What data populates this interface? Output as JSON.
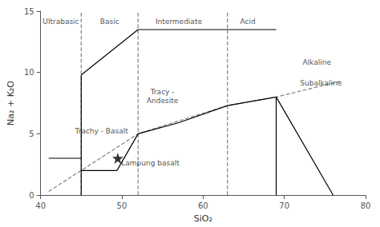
{
  "chart_data": {
    "type": "line",
    "xlabel": "SiO₂",
    "ylabel": "Na₂ + K₂O",
    "xlim": [
      40,
      80
    ],
    "ylim": [
      0,
      15
    ],
    "xticks": [
      40,
      50,
      60,
      70,
      80
    ],
    "yticks": [
      0,
      5,
      10,
      15
    ],
    "grid": false,
    "series": [
      {
        "x": [
          45,
          45
        ],
        "values": [
          0,
          15
        ],
        "color": "gray",
        "line_style": "dashed"
      },
      {
        "x": [
          52,
          52
        ],
        "values": [
          0,
          15
        ],
        "color": "gray",
        "line_style": "dashed"
      },
      {
        "x": [
          63,
          63
        ],
        "values": [
          0,
          15
        ],
        "color": "gray",
        "line_style": "dashed"
      },
      {
        "x": [
          41,
          45
        ],
        "values": [
          3.0,
          3.0
        ],
        "color": "black",
        "line_style": "solid"
      },
      {
        "x": [
          45,
          45
        ],
        "values": [
          0,
          2.0
        ],
        "color": "black",
        "line_style": "solid"
      },
      {
        "x": [
          45,
          52
        ],
        "values": [
          9.8,
          13.5
        ],
        "color": "black",
        "line_style": "solid"
      },
      {
        "x": [
          52,
          57
        ],
        "values": [
          13.5,
          13.5
        ],
        "color": "black",
        "line_style": "solid"
      },
      {
        "x": [
          45,
          49.4
        ],
        "values": [
          2.0,
          2.0
        ],
        "color": "black",
        "line_style": "solid"
      },
      {
        "x": [
          49.4,
          52
        ],
        "values": [
          2.0,
          5.0
        ],
        "color": "black",
        "line_style": "solid"
      },
      {
        "x": [
          52,
          57
        ],
        "values": [
          5.0,
          5.9
        ],
        "color": "black",
        "line_style": "solid"
      },
      {
        "x": [
          57,
          63
        ],
        "values": [
          5.9,
          7.3
        ],
        "color": "black",
        "line_style": "solid"
      },
      {
        "x": [
          63,
          69
        ],
        "values": [
          7.3,
          8.0
        ],
        "color": "black",
        "line_style": "solid"
      },
      {
        "x": [
          57,
          63
        ],
        "values": [
          13.5,
          13.5
        ],
        "color": "black",
        "line_style": "solid"
      },
      {
        "x": [
          63,
          69
        ],
        "values": [
          13.5,
          13.5
        ],
        "color": "black",
        "line_style": "solid"
      },
      {
        "x": [
          69,
          69
        ],
        "values": [
          0,
          8.0
        ],
        "color": "black",
        "line_style": "solid"
      },
      {
        "x": [
          69,
          76
        ],
        "values": [
          8.0,
          0
        ],
        "color": "black",
        "line_style": "solid"
      },
      {
        "x": [
          45,
          45
        ],
        "values": [
          2.0,
          9.8
        ],
        "color": "black",
        "line_style": "solid"
      },
      {
        "x": [
          41,
          45,
          52,
          63,
          69,
          77
        ],
        "values": [
          0.3,
          2.0,
          5.0,
          7.3,
          8.0,
          9.3
        ],
        "color": "gray",
        "line_style": "dashed"
      },
      {
        "type": "scatter",
        "x": [
          49.5
        ],
        "values": [
          3.0
        ],
        "color": "black",
        "marker": "star"
      }
    ],
    "annotations": [
      {
        "text": "Ultrabasic",
        "x": 42.5,
        "y": 14.5
      },
      {
        "text": "Basic",
        "x": 48.5,
        "y": 14.5
      },
      {
        "text": "Intermediate",
        "x": 57.0,
        "y": 14.5
      },
      {
        "text": "Acid",
        "x": 65.5,
        "y": 14.5
      },
      {
        "text": "Alkaline",
        "x": 74.0,
        "y": 11.2
      },
      {
        "text": "Subalkaline",
        "x": 74.5,
        "y": 9.5
      },
      {
        "text": "Tracy -\nAndesite",
        "x": 55.0,
        "y": 8.8
      },
      {
        "text": "Trachy - Basalt",
        "x": 47.5,
        "y": 5.6
      },
      {
        "text": "Lampung basalt",
        "x": 53.5,
        "y": 3.0
      }
    ]
  }
}
